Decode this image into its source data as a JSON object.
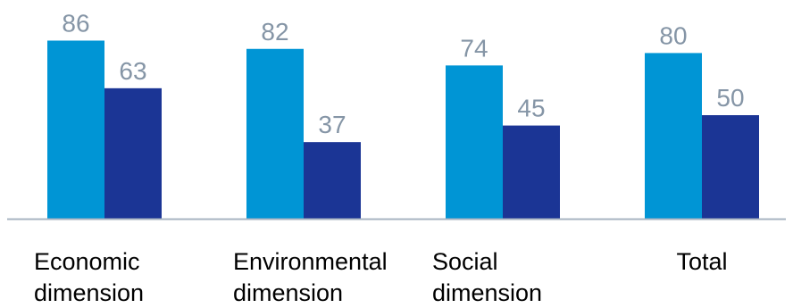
{
  "chart_data": {
    "type": "bar",
    "categories": [
      [
        "Economic",
        "dimension"
      ],
      [
        "Environmental",
        "dimension"
      ],
      [
        "Social",
        "dimension"
      ],
      [
        "Total"
      ]
    ],
    "series": [
      {
        "values": [
          86,
          82,
          74,
          80
        ],
        "color": "#0095d5"
      },
      {
        "values": [
          63,
          37,
          45,
          50
        ],
        "color": "#1b3595"
      }
    ],
    "ylim": [
      0,
      100
    ],
    "grid": false,
    "legend": "none",
    "title": "",
    "xlabel": "",
    "ylabel": "",
    "axis_color": "#a8b4c2"
  }
}
